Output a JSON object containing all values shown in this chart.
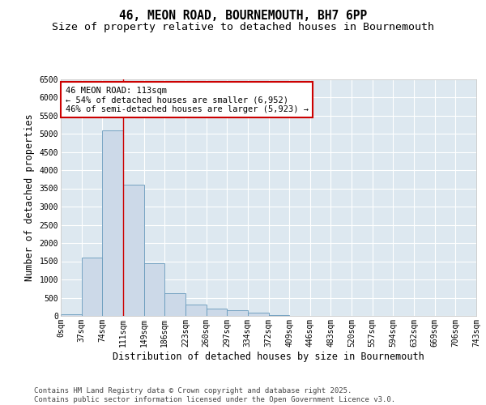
{
  "title_line1": "46, MEON ROAD, BOURNEMOUTH, BH7 6PP",
  "title_line2": "Size of property relative to detached houses in Bournemouth",
  "xlabel": "Distribution of detached houses by size in Bournemouth",
  "ylabel": "Number of detached properties",
  "bin_labels": [
    "0sqm",
    "37sqm",
    "74sqm",
    "111sqm",
    "149sqm",
    "186sqm",
    "223sqm",
    "260sqm",
    "297sqm",
    "334sqm",
    "372sqm",
    "409sqm",
    "446sqm",
    "483sqm",
    "520sqm",
    "557sqm",
    "594sqm",
    "632sqm",
    "669sqm",
    "706sqm",
    "743sqm"
  ],
  "bar_values": [
    50,
    1600,
    5100,
    3600,
    1450,
    620,
    320,
    200,
    150,
    90,
    30,
    10,
    0,
    0,
    0,
    0,
    0,
    0,
    0,
    0
  ],
  "bar_color": "#ccd9e8",
  "bar_edge_color": "#6699bb",
  "background_color": "#dde8f0",
  "vline_x": 3,
  "vline_color": "#cc0000",
  "annotation_text": "46 MEON ROAD: 113sqm\n← 54% of detached houses are smaller (6,952)\n46% of semi-detached houses are larger (5,923) →",
  "annotation_box_facecolor": "#ffffff",
  "annotation_box_edgecolor": "#cc0000",
  "ylim": [
    0,
    6500
  ],
  "yticks": [
    0,
    500,
    1000,
    1500,
    2000,
    2500,
    3000,
    3500,
    4000,
    4500,
    5000,
    5500,
    6000,
    6500
  ],
  "footer_line1": "Contains HM Land Registry data © Crown copyright and database right 2025.",
  "footer_line2": "Contains public sector information licensed under the Open Government Licence v3.0.",
  "title_fontsize": 10.5,
  "subtitle_fontsize": 9.5,
  "axis_label_fontsize": 8.5,
  "tick_fontsize": 7,
  "annotation_fontsize": 7.5,
  "footer_fontsize": 6.5
}
